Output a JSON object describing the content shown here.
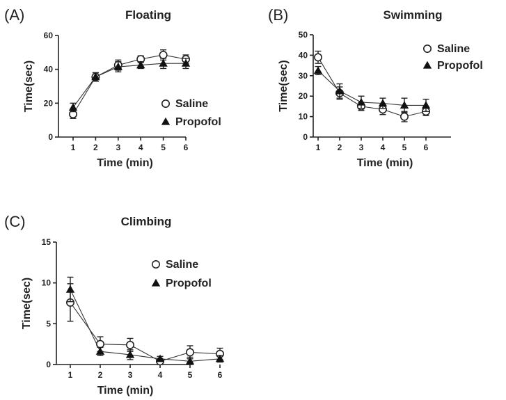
{
  "chart_data": [
    {
      "type": "line",
      "panel": "(A)",
      "title": "Floating",
      "xlabel": "Time (min)",
      "ylabel": "Time(sec)",
      "x": [
        1,
        2,
        3,
        4,
        5,
        6
      ],
      "xticks": [
        "1",
        "2",
        "3",
        "4",
        "5",
        "6"
      ],
      "ylim": [
        0,
        60
      ],
      "yticks": [
        "0",
        "20",
        "40",
        "60"
      ],
      "ytick_values": [
        0,
        20,
        40,
        60
      ],
      "legend": "right",
      "series": [
        {
          "name": "Saline",
          "marker": "open-circle",
          "values": [
            13.5,
            35.5,
            42.5,
            46,
            48.5,
            46
          ],
          "errors": [
            2.5,
            2.5,
            3,
            2,
            3,
            2.5
          ]
        },
        {
          "name": "Propofol",
          "marker": "filled-triangle",
          "values": [
            17.5,
            35.5,
            41.5,
            42.5,
            43.5,
            43.5
          ],
          "errors": [
            2.5,
            2.5,
            3,
            2,
            3,
            3
          ]
        }
      ]
    },
    {
      "type": "line",
      "panel": "(B)",
      "title": "Swimming",
      "xlabel": "Time (min)",
      "ylabel": "Time(sec)",
      "x": [
        1,
        2,
        3,
        4,
        5,
        6
      ],
      "xticks": [
        "1",
        "2",
        "3",
        "4",
        "5",
        "6"
      ],
      "ylim": [
        0,
        50
      ],
      "yticks": [
        "0",
        "10",
        "20",
        "30",
        "40",
        "50"
      ],
      "ytick_values": [
        0,
        10,
        20,
        30,
        40,
        50
      ],
      "legend": "top-right",
      "series": [
        {
          "name": "Saline",
          "marker": "open-circle",
          "values": [
            39,
            21.5,
            15,
            13.5,
            10,
            12.5
          ],
          "errors": [
            3,
            3,
            2,
            2.5,
            2.5,
            2
          ]
        },
        {
          "name": "Propofol",
          "marker": "filled-triangle",
          "values": [
            32.5,
            22.5,
            17,
            16.5,
            15.5,
            15.5
          ],
          "errors": [
            2,
            3.5,
            3,
            2.5,
            3.5,
            3
          ]
        }
      ]
    },
    {
      "type": "line",
      "panel": "(C)",
      "title": "Climbing",
      "xlabel": "Time (min)",
      "ylabel": "Time(sec)",
      "x": [
        1,
        2,
        3,
        4,
        5,
        6
      ],
      "xticks": [
        "1",
        "2",
        "3",
        "4",
        "5",
        "6"
      ],
      "ylim": [
        0,
        15
      ],
      "yticks": [
        "0",
        "5",
        "10",
        "15"
      ],
      "ytick_values": [
        0,
        5,
        10,
        15
      ],
      "legend": "top-right",
      "series": [
        {
          "name": "Saline",
          "marker": "open-circle",
          "values": [
            7.6,
            2.5,
            2.4,
            0.4,
            1.5,
            1.3
          ],
          "errors": [
            2.3,
            0.9,
            0.8,
            0.3,
            0.8,
            0.7
          ]
        },
        {
          "name": "Propofol",
          "marker": "filled-triangle",
          "values": [
            9.2,
            1.6,
            1.2,
            0.7,
            0.4,
            0.7
          ],
          "errors": [
            1.5,
            0.5,
            0.6,
            0.3,
            0.5,
            0.4
          ]
        }
      ]
    }
  ]
}
